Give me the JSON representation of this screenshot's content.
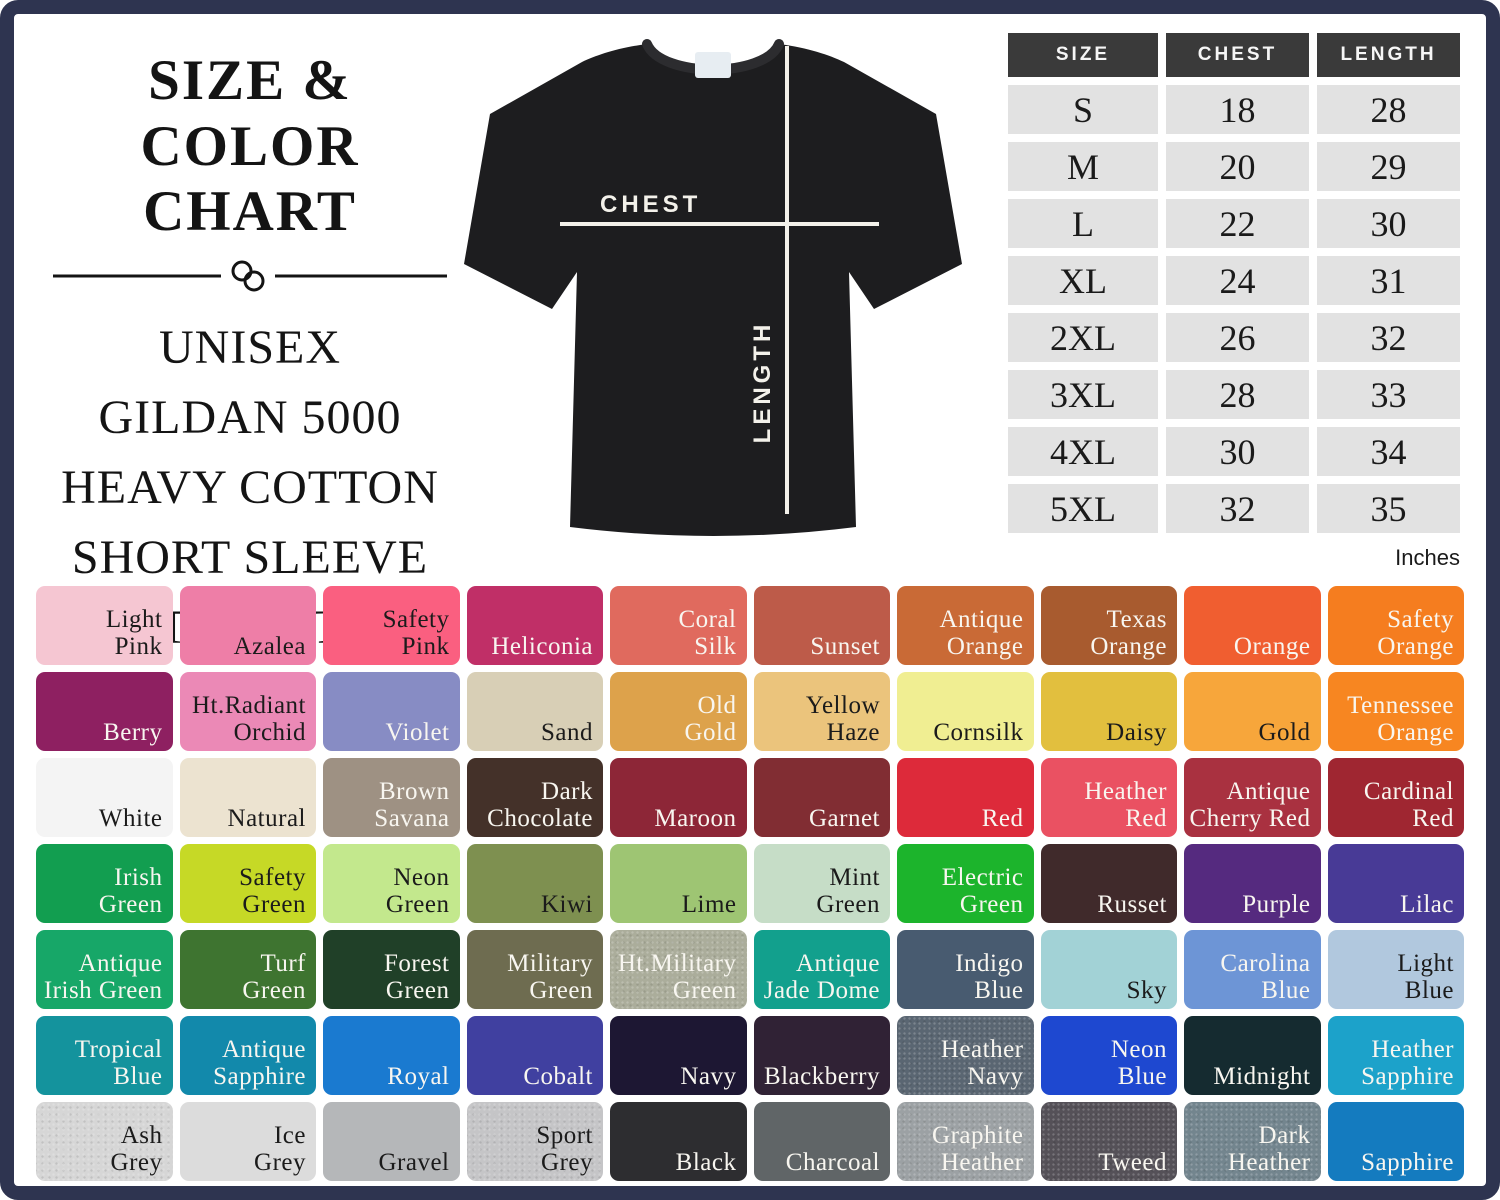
{
  "frame_color": "#2e3450",
  "title": {
    "line1": "SIZE & COLOR",
    "line2": "CHART"
  },
  "subtitle_lines": [
    "UNISEX",
    "GILDAN 5000",
    "HEAVY COTTON",
    "SHORT SLEEVE",
    "T-SHIRT"
  ],
  "shirt": {
    "chest_label": "CHEST",
    "length_label": "LENGTH"
  },
  "size_table": {
    "headers": [
      "SIZE",
      "CHEST",
      "LENGTH"
    ],
    "header_bg": "#3a3a3a",
    "row_bg": "#e2e2e2",
    "rows": [
      [
        "S",
        "18",
        "28"
      ],
      [
        "M",
        "20",
        "29"
      ],
      [
        "L",
        "22",
        "30"
      ],
      [
        "XL",
        "24",
        "31"
      ],
      [
        "2XL",
        "26",
        "32"
      ],
      [
        "3XL",
        "28",
        "33"
      ],
      [
        "4XL",
        "30",
        "34"
      ],
      [
        "5XL",
        "32",
        "35"
      ]
    ],
    "unit_note": "Inches"
  },
  "color_grid": {
    "swatches": [
      {
        "name": "Light Pink",
        "lines": [
          "Light",
          "Pink"
        ],
        "hex": "#f5c6d2",
        "text": "dark"
      },
      {
        "name": "Azalea",
        "lines": [
          "Azalea"
        ],
        "hex": "#ee7ea7",
        "text": "dark"
      },
      {
        "name": "Safety Pink",
        "lines": [
          "Safety",
          "Pink"
        ],
        "hex": "#fa5f80",
        "text": "dark"
      },
      {
        "name": "Heliconia",
        "lines": [
          "Heliconia"
        ],
        "hex": "#c02f67",
        "text": "light"
      },
      {
        "name": "Coral Silk",
        "lines": [
          "Coral",
          "Silk"
        ],
        "hex": "#e06a5e",
        "text": "light"
      },
      {
        "name": "Sunset",
        "lines": [
          "Sunset"
        ],
        "hex": "#bd5b49",
        "text": "light"
      },
      {
        "name": "Antique Orange",
        "lines": [
          "Antique",
          "Orange"
        ],
        "hex": "#c96a36",
        "text": "light"
      },
      {
        "name": "Texas Orange",
        "lines": [
          "Texas",
          "Orange"
        ],
        "hex": "#a85b2f",
        "text": "light"
      },
      {
        "name": "Orange",
        "lines": [
          "Orange"
        ],
        "hex": "#f05e30",
        "text": "light"
      },
      {
        "name": "Safety Orange",
        "lines": [
          "Safety",
          "Orange"
        ],
        "hex": "#f57d1f",
        "text": "light"
      },
      {
        "name": "Berry",
        "lines": [
          "Berry"
        ],
        "hex": "#8e2061",
        "text": "light"
      },
      {
        "name": "Ht.Radiant Orchid",
        "lines": [
          "Ht.Radiant",
          "Orchid"
        ],
        "hex": "#eb89b6",
        "text": "dark"
      },
      {
        "name": "Violet",
        "lines": [
          "Violet"
        ],
        "hex": "#878cc4",
        "text": "light"
      },
      {
        "name": "Sand",
        "lines": [
          "Sand"
        ],
        "hex": "#d8cfb6",
        "text": "dark"
      },
      {
        "name": "Old Gold",
        "lines": [
          "Old",
          "Gold"
        ],
        "hex": "#dda24b",
        "text": "light"
      },
      {
        "name": "Yellow Haze",
        "lines": [
          "Yellow",
          "Haze"
        ],
        "hex": "#ebc47c",
        "text": "dark"
      },
      {
        "name": "Cornsilk",
        "lines": [
          "Cornsilk"
        ],
        "hex": "#f0ee92",
        "text": "dark"
      },
      {
        "name": "Daisy",
        "lines": [
          "Daisy"
        ],
        "hex": "#e2bf3e",
        "text": "dark"
      },
      {
        "name": "Gold",
        "lines": [
          "Gold"
        ],
        "hex": "#f7a63b",
        "text": "dark"
      },
      {
        "name": "Tennessee Orange",
        "lines": [
          "Tennessee",
          "Orange"
        ],
        "hex": "#f78621",
        "text": "light"
      },
      {
        "name": "White",
        "lines": [
          "White"
        ],
        "hex": "#f4f4f4",
        "text": "dark"
      },
      {
        "name": "Natural",
        "lines": [
          "Natural"
        ],
        "hex": "#ece3d0",
        "text": "dark"
      },
      {
        "name": "Brown Savana",
        "lines": [
          "Brown",
          "Savana"
        ],
        "hex": "#9e9183",
        "text": "light"
      },
      {
        "name": "Dark Chocolate",
        "lines": [
          "Dark",
          "Chocolate"
        ],
        "hex": "#443129",
        "text": "light"
      },
      {
        "name": "Maroon",
        "lines": [
          "Maroon"
        ],
        "hex": "#8d2637",
        "text": "light"
      },
      {
        "name": "Garnet",
        "lines": [
          "Garnet"
        ],
        "hex": "#812d33",
        "text": "light"
      },
      {
        "name": "Red",
        "lines": [
          "Red"
        ],
        "hex": "#dd2a3a",
        "text": "light"
      },
      {
        "name": "Heather Red",
        "lines": [
          "Heather",
          "Red"
        ],
        "hex": "#ea5162",
        "text": "light"
      },
      {
        "name": "Antique Cherry Red",
        "lines": [
          "Antique",
          "Cherry Red"
        ],
        "hex": "#a93140",
        "text": "light"
      },
      {
        "name": "Cardinal Red",
        "lines": [
          "Cardinal",
          "Red"
        ],
        "hex": "#9f2631",
        "text": "light"
      },
      {
        "name": "Irish Green",
        "lines": [
          "Irish",
          "Green"
        ],
        "hex": "#129e50",
        "text": "light"
      },
      {
        "name": "Safety Green",
        "lines": [
          "Safety",
          "Green"
        ],
        "hex": "#c6d926",
        "text": "dark"
      },
      {
        "name": "Neon Green",
        "lines": [
          "Neon",
          "Green"
        ],
        "hex": "#c3e88d",
        "text": "dark"
      },
      {
        "name": "Kiwi",
        "lines": [
          "Kiwi"
        ],
        "hex": "#7e9050",
        "text": "dark"
      },
      {
        "name": "Lime",
        "lines": [
          "Lime"
        ],
        "hex": "#9ec573",
        "text": "dark"
      },
      {
        "name": "Mint Green",
        "lines": [
          "Mint",
          "Green"
        ],
        "hex": "#c6ddc7",
        "text": "dark"
      },
      {
        "name": "Electric Green",
        "lines": [
          "Electric",
          "Green"
        ],
        "hex": "#1cb42c",
        "text": "light"
      },
      {
        "name": "Russet",
        "lines": [
          "Russet"
        ],
        "hex": "#402a2b",
        "text": "light"
      },
      {
        "name": "Purple",
        "lines": [
          "Purple"
        ],
        "hex": "#552a7f",
        "text": "light"
      },
      {
        "name": "Lilac",
        "lines": [
          "Lilac"
        ],
        "hex": "#483a96",
        "text": "light"
      },
      {
        "name": "Antique Irish Green",
        "lines": [
          "Antique",
          "Irish Green"
        ],
        "hex": "#17a768",
        "text": "light"
      },
      {
        "name": "Turf Green",
        "lines": [
          "Turf",
          "Green"
        ],
        "hex": "#3e7430",
        "text": "light"
      },
      {
        "name": "Forest Green",
        "lines": [
          "Forest",
          "Green"
        ],
        "hex": "#204028",
        "text": "light"
      },
      {
        "name": "Military Green",
        "lines": [
          "Military",
          "Green"
        ],
        "hex": "#6e6c50",
        "text": "light"
      },
      {
        "name": "Ht.Military Green",
        "lines": [
          "Ht.Military",
          "Green"
        ],
        "hex": "#abad9b",
        "text": "light",
        "heather": true
      },
      {
        "name": "Antique Jade Dome",
        "lines": [
          "Antique",
          "Jade Dome"
        ],
        "hex": "#12a08d",
        "text": "light"
      },
      {
        "name": "Indigo Blue",
        "lines": [
          "Indigo",
          "Blue"
        ],
        "hex": "#485b70",
        "text": "light"
      },
      {
        "name": "Sky",
        "lines": [
          "Sky"
        ],
        "hex": "#a2d2d6",
        "text": "dark"
      },
      {
        "name": "Carolina Blue",
        "lines": [
          "Carolina",
          "Blue"
        ],
        "hex": "#6d95d6",
        "text": "light"
      },
      {
        "name": "Light Blue",
        "lines": [
          "Light",
          "Blue"
        ],
        "hex": "#b1c8de",
        "text": "dark"
      },
      {
        "name": "Tropical Blue",
        "lines": [
          "Tropical",
          "Blue"
        ],
        "hex": "#14939d",
        "text": "light"
      },
      {
        "name": "Antique Sapphire",
        "lines": [
          "Antique",
          "Sapphire"
        ],
        "hex": "#1289ab",
        "text": "light"
      },
      {
        "name": "Royal",
        "lines": [
          "Royal"
        ],
        "hex": "#1a7ad0",
        "text": "light"
      },
      {
        "name": "Cobalt",
        "lines": [
          "Cobalt"
        ],
        "hex": "#4040a0",
        "text": "light"
      },
      {
        "name": "Navy",
        "lines": [
          "Navy"
        ],
        "hex": "#1d1733",
        "text": "light"
      },
      {
        "name": "Blackberry",
        "lines": [
          "Blackberry"
        ],
        "hex": "#302235",
        "text": "light"
      },
      {
        "name": "Heather Navy",
        "lines": [
          "Heather",
          "Navy"
        ],
        "hex": "#5a6672",
        "text": "light",
        "heather": true
      },
      {
        "name": "Neon Blue",
        "lines": [
          "Neon",
          "Blue"
        ],
        "hex": "#1e48d0",
        "text": "light"
      },
      {
        "name": "Midnight",
        "lines": [
          "Midnight"
        ],
        "hex": "#152b30",
        "text": "light"
      },
      {
        "name": "Heather Sapphire",
        "lines": [
          "Heather",
          "Sapphire"
        ],
        "hex": "#1ca2ca",
        "text": "light"
      },
      {
        "name": "Ash Grey",
        "lines": [
          "Ash",
          "Grey"
        ],
        "hex": "#d6d6d6",
        "text": "dark",
        "heather": true
      },
      {
        "name": "Ice Grey",
        "lines": [
          "Ice",
          "Grey"
        ],
        "hex": "#dcdcdc",
        "text": "dark"
      },
      {
        "name": "Gravel",
        "lines": [
          "Gravel"
        ],
        "hex": "#b5b7b9",
        "text": "dark"
      },
      {
        "name": "Sport Grey",
        "lines": [
          "Sport",
          "Grey"
        ],
        "hex": "#c5c5c7",
        "text": "dark",
        "heather": true
      },
      {
        "name": "Black",
        "lines": [
          "Black"
        ],
        "hex": "#2d2d30",
        "text": "light"
      },
      {
        "name": "Charcoal",
        "lines": [
          "Charcoal"
        ],
        "hex": "#606567",
        "text": "light"
      },
      {
        "name": "Graphite Heather",
        "lines": [
          "Graphite",
          "Heather"
        ],
        "hex": "#9ca1a4",
        "text": "light",
        "heather": true
      },
      {
        "name": "Tweed",
        "lines": [
          "Tweed"
        ],
        "hex": "#555158",
        "text": "light",
        "heather": true
      },
      {
        "name": "Dark Heather",
        "lines": [
          "Dark",
          "Heather"
        ],
        "hex": "#73858e",
        "text": "light",
        "heather": true
      },
      {
        "name": "Sapphire",
        "lines": [
          "Sapphire"
        ],
        "hex": "#147bbf",
        "text": "light"
      }
    ]
  }
}
